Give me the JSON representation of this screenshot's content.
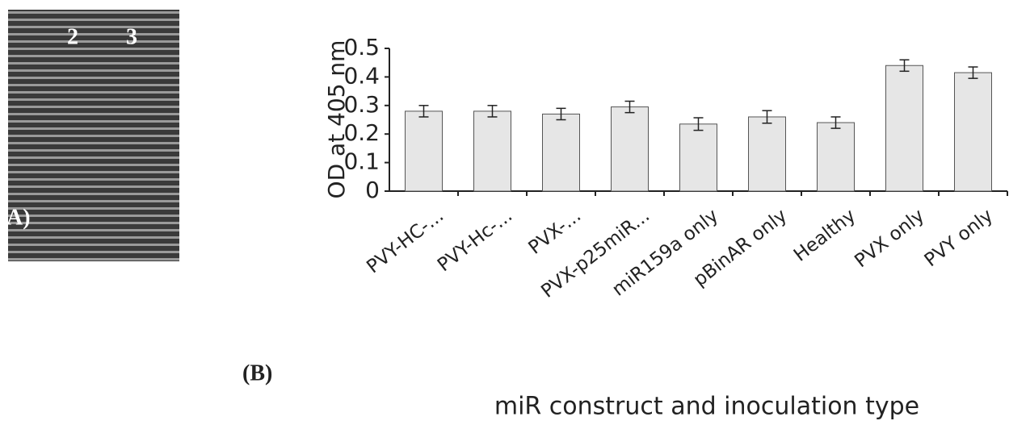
{
  "panel_a": {
    "lane_labels": [
      "2",
      "3"
    ],
    "label": "A)"
  },
  "chart_data": {
    "type": "bar",
    "panel_label": "(B)",
    "y_label": "OD at 405 nm",
    "x_label": "miR construct and inoculation type",
    "categories": [
      "PVY-HC-...",
      "PVY-Hc-...",
      "PVX-...",
      "PVX-p25miR...",
      "miR159a only",
      "pBinAR only",
      "Healthy",
      "PVX only",
      "PVY only"
    ],
    "values": [
      0.28,
      0.28,
      0.27,
      0.295,
      0.235,
      0.26,
      0.24,
      0.44,
      0.415
    ],
    "errors": [
      0.02,
      0.02,
      0.02,
      0.02,
      0.022,
      0.022,
      0.02,
      0.02,
      0.02
    ],
    "color": "#e6e6e6",
    "ylim": [
      0,
      0.5
    ],
    "yticks": [
      0,
      0.1,
      0.2,
      0.3,
      0.4,
      0.5
    ],
    "grid": false
  }
}
